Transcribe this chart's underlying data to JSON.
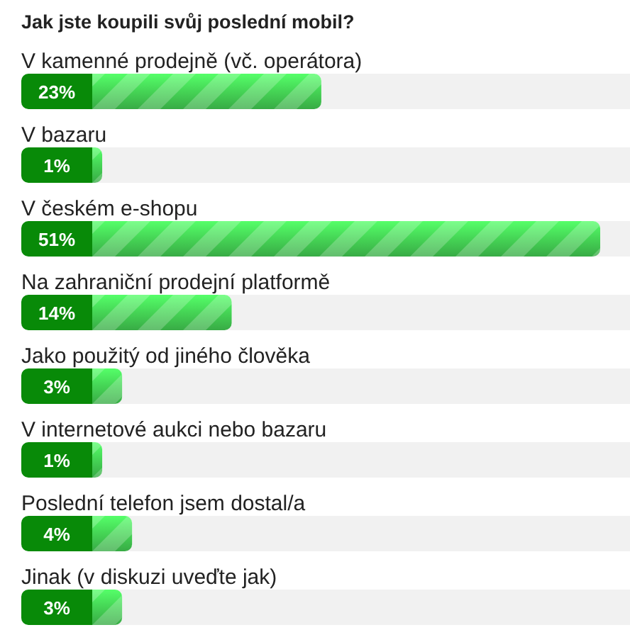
{
  "chart_data": {
    "type": "bar",
    "orientation": "horizontal",
    "title": "Jak jste koupili svůj poslední mobil?",
    "categories": [
      "V kamenné prodejně (vč. operátora)",
      "V bazaru",
      "V českém e-shopu",
      "Na zahraniční prodejní platformě",
      "Jako použitý od jiného člověka",
      "V internetové aukci nebo bazaru",
      "Poslední telefon jsem dostal/a",
      "Jinak (v diskuzi uveďte jak)"
    ],
    "values": [
      23,
      1,
      51,
      14,
      3,
      1,
      4,
      3
    ],
    "value_labels": [
      "23%",
      "1%",
      "51%",
      "14%",
      "3%",
      "1%",
      "4%",
      "3%"
    ],
    "color": "#45d455"
  }
}
